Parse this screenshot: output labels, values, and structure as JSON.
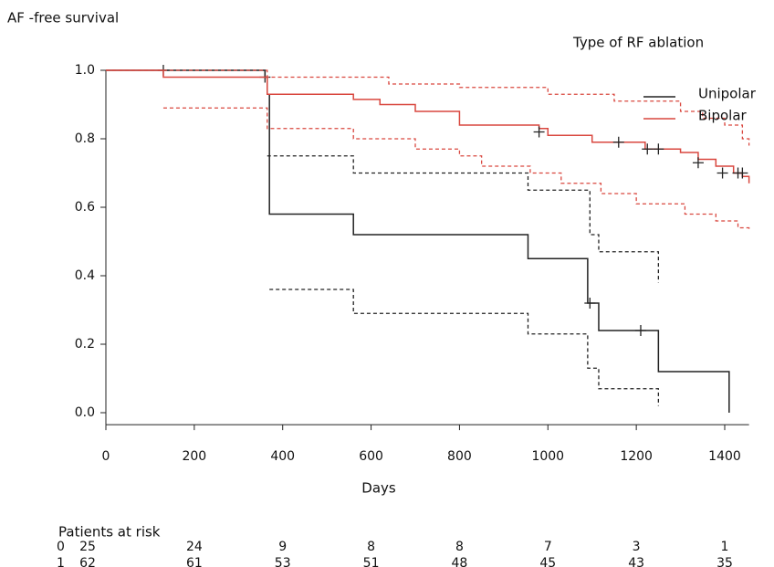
{
  "chart_data": {
    "type": "line",
    "step": true,
    "title": "AF -free survival",
    "xlabel": "Days",
    "legend_title": "Type of RF ablation",
    "legend": "upper right",
    "xlim": [
      0,
      1455
    ],
    "ylim": [
      -0.035,
      1.0
    ],
    "xticks": [
      0,
      200,
      400,
      600,
      800,
      1000,
      1200,
      1400
    ],
    "yticks": [
      {
        "value": 0,
        "label": "0.0"
      },
      0.2,
      0.4,
      0.6,
      0.8,
      {
        "value": 1,
        "label": "1.0"
      }
    ],
    "series": [
      {
        "name": "Unipolar",
        "color": "#222222",
        "x": [
          0,
          360,
          365,
          370,
          560,
          955,
          1090,
          1115,
          1250,
          1410
        ],
        "values": [
          1.0,
          0.98,
          0.93,
          0.58,
          0.52,
          0.45,
          0.32,
          0.24,
          0.12,
          0.0
        ],
        "ci_upper": {
          "x": [
            365,
            560,
            955,
            1095,
            1115,
            1250
          ],
          "values": [
            0.75,
            0.7,
            0.65,
            0.52,
            0.47,
            0.38
          ]
        },
        "ci_lower": {
          "x": [
            370,
            560,
            955,
            1090,
            1115,
            1250
          ],
          "values": [
            0.36,
            0.29,
            0.23,
            0.13,
            0.07,
            0.02
          ]
        },
        "censor_x": [
          130,
          360,
          1095,
          1210
        ],
        "censor_y": [
          1.0,
          0.98,
          0.32,
          0.24
        ]
      },
      {
        "name": "Bipolar",
        "color": "#d9473f",
        "x": [
          0,
          130,
          365,
          560,
          620,
          700,
          800,
          980,
          1000,
          1100,
          1220,
          1300,
          1340,
          1380,
          1420,
          1440,
          1455
        ],
        "values": [
          1.0,
          0.98,
          0.93,
          0.915,
          0.9,
          0.88,
          0.84,
          0.83,
          0.81,
          0.79,
          0.77,
          0.76,
          0.74,
          0.72,
          0.7,
          0.69,
          0.67
        ],
        "ci_upper": {
          "x": [
            0,
            365,
            640,
            800,
            1000,
            1150,
            1300,
            1350,
            1400,
            1440,
            1455
          ],
          "values": [
            1.0,
            0.98,
            0.96,
            0.95,
            0.93,
            0.91,
            0.88,
            0.86,
            0.84,
            0.8,
            0.78
          ]
        },
        "ci_lower": {
          "x": [
            130,
            365,
            560,
            700,
            800,
            850,
            960,
            1030,
            1120,
            1200,
            1310,
            1380,
            1430,
            1455
          ],
          "values": [
            0.89,
            0.83,
            0.8,
            0.77,
            0.75,
            0.72,
            0.7,
            0.67,
            0.64,
            0.61,
            0.58,
            0.56,
            0.54,
            0.53
          ]
        },
        "censor_x": [
          980,
          1160,
          1225,
          1250,
          1340,
          1395,
          1430,
          1440
        ],
        "censor_y": [
          0.82,
          0.79,
          0.77,
          0.77,
          0.73,
          0.7,
          0.7,
          0.7
        ]
      }
    ],
    "risk_table": {
      "title": "Patients at risk",
      "rows": [
        {
          "label": "0",
          "values": [
            25,
            24,
            9,
            8,
            8,
            7,
            3,
            1
          ]
        },
        {
          "label": "1",
          "values": [
            62,
            61,
            53,
            51,
            48,
            45,
            43,
            35
          ]
        }
      ]
    }
  }
}
